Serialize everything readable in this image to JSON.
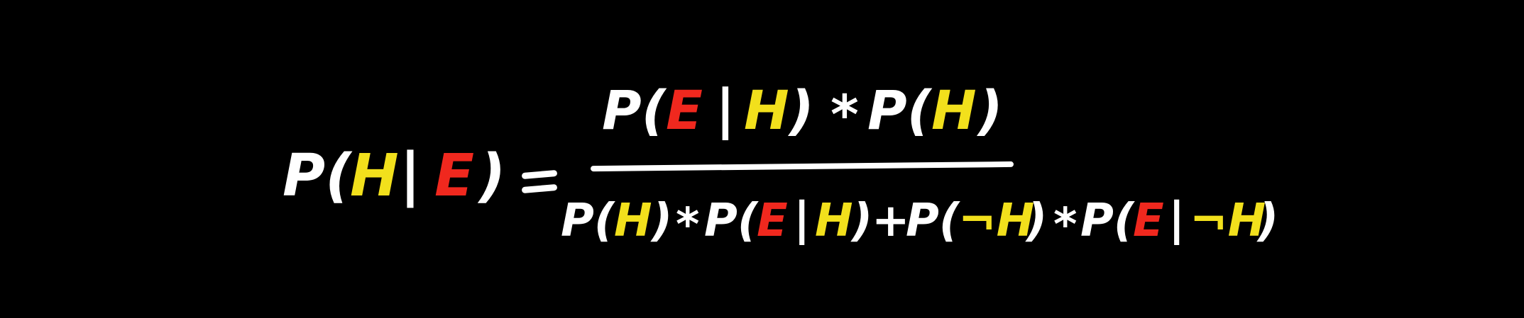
{
  "colors": {
    "background": "#000000",
    "default": "#ffffff",
    "H": "#f2e01c",
    "E": "#f0281e"
  },
  "lhs": [
    {
      "t": "P(",
      "c": "default"
    },
    {
      "t": "H",
      "c": "H"
    },
    {
      "t": "|",
      "c": "default"
    },
    {
      "t": "E",
      "c": "E"
    },
    {
      "t": ")",
      "c": "default"
    }
  ],
  "equals": "=",
  "numerator": [
    {
      "t": "P(",
      "c": "default"
    },
    {
      "t": "E",
      "c": "E"
    },
    {
      "t": "|",
      "c": "default"
    },
    {
      "t": "H",
      "c": "H"
    },
    {
      "t": ")",
      "c": "default"
    },
    {
      "t": "*",
      "c": "default"
    },
    {
      "t": "P(",
      "c": "default"
    },
    {
      "t": "H",
      "c": "H"
    },
    {
      "t": ")",
      "c": "default"
    }
  ],
  "denominator": [
    {
      "t": "P(",
      "c": "default"
    },
    {
      "t": "H",
      "c": "H"
    },
    {
      "t": ")",
      "c": "default"
    },
    {
      "t": "*",
      "c": "default"
    },
    {
      "t": "P(",
      "c": "default"
    },
    {
      "t": "E",
      "c": "E"
    },
    {
      "t": "|",
      "c": "default"
    },
    {
      "t": "H",
      "c": "H"
    },
    {
      "t": ")",
      "c": "default"
    },
    {
      "t": "+",
      "c": "default"
    },
    {
      "t": "P(",
      "c": "default"
    },
    {
      "t": "¬H",
      "c": "H"
    },
    {
      "t": ")",
      "c": "default"
    },
    {
      "t": "*",
      "c": "default"
    },
    {
      "t": "P(",
      "c": "default"
    },
    {
      "t": "E",
      "c": "E"
    },
    {
      "t": "|",
      "c": "default"
    },
    {
      "t": "¬H",
      "c": "H"
    },
    {
      "t": ")",
      "c": "default"
    }
  ]
}
